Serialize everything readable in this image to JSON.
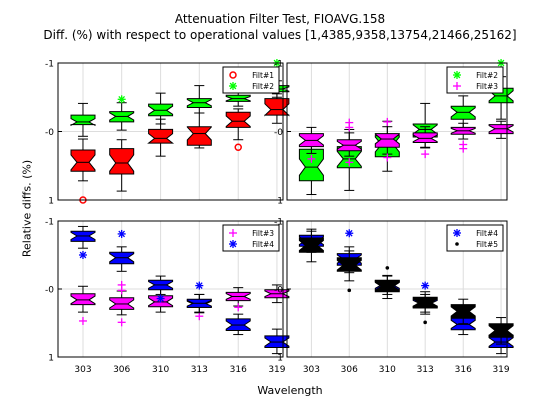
{
  "header": {
    "title_line1": "Attenuation Filter Test, FIOAVG.158",
    "title_line2": "Diff. (%) with respect to operational values [1,4385,9358,13754,21466,25162]"
  },
  "axes": {
    "ylabel": "Relative diffs. (%)",
    "xlabel": "Wavelength"
  },
  "colors": {
    "red": "#ff0000",
    "green": "#00ff00",
    "magenta": "#ff00ff",
    "blue": "#0000ff",
    "black": "#000000"
  },
  "chart_data": {
    "type": "box",
    "categories": [
      "303",
      "306",
      "310",
      "313",
      "316",
      "319"
    ],
    "grid": true,
    "panels": [
      {
        "ylim": [
          -1,
          1
        ],
        "yticks": [
          "-1",
          "-0",
          "1"
        ],
        "legend_position": "top-right",
        "series": [
          {
            "name": "Filt#1",
            "color": "red",
            "marker": "circle",
            "boxes": [
              {
                "q1": -0.58,
                "med": -0.45,
                "q3": -0.27,
                "wlo": -0.72,
                "whi": -0.11,
                "out": [
                  -1.0
                ]
              },
              {
                "q1": -0.62,
                "med": -0.46,
                "q3": -0.25,
                "wlo": -0.87,
                "whi": -0.12,
                "out": []
              },
              {
                "q1": -0.17,
                "med": -0.1,
                "q3": 0.03,
                "wlo": -0.36,
                "whi": 0.18,
                "out": []
              },
              {
                "q1": -0.2,
                "med": -0.03,
                "q3": 0.07,
                "wlo": -0.24,
                "whi": 0.27,
                "out": []
              },
              {
                "q1": 0.06,
                "med": 0.15,
                "q3": 0.28,
                "wlo": -0.12,
                "whi": 0.33,
                "out": [
                  -0.23
                ]
              },
              {
                "q1": 0.24,
                "med": 0.32,
                "q3": 0.48,
                "wlo": 0.12,
                "whi": 0.55,
                "out": []
              }
            ]
          },
          {
            "name": "Filt#2",
            "color": "green",
            "marker": "star",
            "boxes": [
              {
                "q1": 0.1,
                "med": 0.14,
                "q3": 0.24,
                "wlo": -0.07,
                "whi": 0.41,
                "out": []
              },
              {
                "q1": 0.14,
                "med": 0.22,
                "q3": 0.29,
                "wlo": 0.02,
                "whi": 0.42,
                "out": [
                  0.47
                ]
              },
              {
                "q1": 0.23,
                "med": 0.31,
                "q3": 0.4,
                "wlo": 0.11,
                "whi": 0.56,
                "out": []
              },
              {
                "q1": 0.35,
                "med": 0.42,
                "q3": 0.48,
                "wlo": 0.27,
                "whi": 0.67,
                "out": []
              },
              {
                "q1": 0.44,
                "med": 0.48,
                "q3": 0.53,
                "wlo": 0.37,
                "whi": 0.6,
                "out": []
              },
              {
                "q1": 0.58,
                "med": 0.62,
                "q3": 0.67,
                "wlo": 0.5,
                "whi": 0.74,
                "out": [
                  1.0
                ]
              }
            ]
          }
        ]
      },
      {
        "ylim": [
          -1,
          1
        ],
        "yticks": [
          "-1",
          "-0",
          "1"
        ],
        "legend_position": "top-right",
        "series": [
          {
            "name": "Filt#2",
            "color": "green",
            "marker": "star",
            "boxes": [
              {
                "q1": -0.72,
                "med": -0.52,
                "q3": -0.26,
                "wlo": -0.92,
                "whi": -0.06,
                "out": []
              },
              {
                "q1": -0.53,
                "med": -0.4,
                "q3": -0.22,
                "wlo": -0.86,
                "whi": 0.03,
                "out": []
              },
              {
                "q1": -0.37,
                "med": -0.19,
                "q3": -0.06,
                "wlo": -0.58,
                "whi": 0.15,
                "out": []
              },
              {
                "q1": -0.08,
                "med": 0.03,
                "q3": 0.11,
                "wlo": -0.23,
                "whi": 0.41,
                "out": []
              },
              {
                "q1": 0.18,
                "med": 0.28,
                "q3": 0.37,
                "wlo": 0.04,
                "whi": 0.52,
                "out": []
              },
              {
                "q1": 0.42,
                "med": 0.52,
                "q3": 0.63,
                "wlo": 0.18,
                "whi": 0.8,
                "out": [
                  1.0
                ]
              }
            ]
          },
          {
            "name": "Filt#3",
            "color": "magenta",
            "marker": "plus",
            "boxes": [
              {
                "q1": -0.22,
                "med": -0.13,
                "q3": -0.03,
                "wlo": -0.32,
                "whi": 0.06,
                "out": [
                  -0.4
                ]
              },
              {
                "q1": -0.28,
                "med": -0.2,
                "q3": -0.12,
                "wlo": -0.36,
                "whi": -0.02,
                "out": [
                  0.13,
                  0.06,
                  -0.45
                ]
              },
              {
                "q1": -0.23,
                "med": -0.11,
                "q3": -0.03,
                "wlo": -0.33,
                "whi": 0.07,
                "out": [
                  0.14,
                  -0.38
                ]
              },
              {
                "q1": -0.16,
                "med": -0.1,
                "q3": -0.02,
                "wlo": -0.24,
                "whi": 0.07,
                "out": [
                  -0.33
                ]
              },
              {
                "q1": -0.04,
                "med": 0.01,
                "q3": 0.06,
                "wlo": -0.11,
                "whi": 0.12,
                "out": [
                  -0.19,
                  -0.25
                ]
              },
              {
                "q1": -0.03,
                "med": 0.04,
                "q3": 0.1,
                "wlo": -0.1,
                "whi": 0.15,
                "out": []
              }
            ]
          }
        ]
      },
      {
        "ylim": [
          -1,
          1
        ],
        "yticks": [
          "-1",
          "-0",
          "1"
        ],
        "legend_position": "top-right",
        "series": [
          {
            "name": "Filt#3",
            "color": "magenta",
            "marker": "plus",
            "boxes": [
              {
                "q1": -0.23,
                "med": -0.16,
                "q3": -0.07,
                "wlo": -0.34,
                "whi": 0.04,
                "out": [
                  -0.47
                ]
              },
              {
                "q1": -0.3,
                "med": -0.22,
                "q3": -0.13,
                "wlo": -0.38,
                "whi": -0.03,
                "out": [
                  0.06,
                  -0.02,
                  -0.49
                ]
              },
              {
                "q1": -0.26,
                "med": -0.19,
                "q3": -0.1,
                "wlo": -0.34,
                "whi": 0.02,
                "out": [
                  -0.17
                ]
              },
              {
                "q1": -0.27,
                "med": -0.22,
                "q3": -0.16,
                "wlo": -0.34,
                "whi": -0.08,
                "out": [
                  -0.4
                ]
              },
              {
                "q1": -0.17,
                "med": -0.11,
                "q3": -0.05,
                "wlo": -0.25,
                "whi": 0.02,
                "out": [
                  -0.27
                ]
              },
              {
                "q1": -0.13,
                "med": -0.07,
                "q3": -0.01,
                "wlo": -0.2,
                "whi": 0.06,
                "out": []
              }
            ]
          },
          {
            "name": "Filt#4",
            "color": "blue",
            "marker": "star",
            "boxes": [
              {
                "q1": 0.7,
                "med": 0.78,
                "q3": 0.85,
                "wlo": 0.6,
                "whi": 0.92,
                "out": [
                  0.5
                ]
              },
              {
                "q1": 0.37,
                "med": 0.46,
                "q3": 0.54,
                "wlo": 0.26,
                "whi": 0.62,
                "out": [
                  0.81
                ]
              },
              {
                "q1": -0.01,
                "med": 0.06,
                "q3": 0.13,
                "wlo": -0.08,
                "whi": 0.19,
                "out": [
                  -0.14
                ]
              },
              {
                "q1": -0.27,
                "med": -0.21,
                "q3": -0.15,
                "wlo": -0.35,
                "whi": -0.08,
                "out": [
                  0.05
                ]
              },
              {
                "q1": -0.61,
                "med": -0.53,
                "q3": -0.44,
                "wlo": -0.67,
                "whi": -0.37,
                "out": []
              },
              {
                "q1": -0.86,
                "med": -0.78,
                "q3": -0.69,
                "wlo": -0.95,
                "whi": -0.59,
                "out": []
              }
            ]
          }
        ]
      },
      {
        "ylim": [
          -1,
          1
        ],
        "yticks": [
          "-1",
          "-0",
          "1"
        ],
        "legend_position": "top-right",
        "series": [
          {
            "name": "Filt#4",
            "color": "blue",
            "marker": "star",
            "boxes": [
              {
                "q1": 0.63,
                "med": 0.71,
                "q3": 0.79,
                "wlo": 0.54,
                "whi": 0.88,
                "out": []
              },
              {
                "q1": 0.35,
                "med": 0.44,
                "q3": 0.52,
                "wlo": 0.24,
                "whi": 0.62,
                "out": [
                  0.82
                ]
              },
              {
                "q1": -0.01,
                "med": 0.06,
                "q3": 0.13,
                "wlo": -0.08,
                "whi": 0.19,
                "out": []
              },
              {
                "q1": -0.27,
                "med": -0.21,
                "q3": -0.15,
                "wlo": -0.34,
                "whi": -0.08,
                "out": [
                  0.05
                ]
              },
              {
                "q1": -0.6,
                "med": -0.52,
                "q3": -0.43,
                "wlo": -0.67,
                "whi": -0.37,
                "out": []
              },
              {
                "q1": -0.86,
                "med": -0.78,
                "q3": -0.68,
                "wlo": -0.95,
                "whi": -0.59,
                "out": []
              }
            ]
          },
          {
            "name": "Filt#5",
            "color": "black",
            "marker": "dot",
            "boxes": [
              {
                "q1": 0.54,
                "med": 0.64,
                "q3": 0.75,
                "wlo": 0.4,
                "whi": 0.85,
                "out": []
              },
              {
                "q1": 0.26,
                "med": 0.35,
                "q3": 0.46,
                "wlo": 0.12,
                "whi": 0.56,
                "out": [
                  -0.02
                ]
              },
              {
                "q1": -0.04,
                "med": 0.04,
                "q3": 0.12,
                "wlo": -0.14,
                "whi": 0.2,
                "out": [
                  0.31
                ]
              },
              {
                "q1": -0.28,
                "med": -0.2,
                "q3": -0.12,
                "wlo": -0.37,
                "whi": -0.04,
                "out": [
                  -0.49
                ]
              },
              {
                "q1": -0.42,
                "med": -0.33,
                "q3": -0.23,
                "wlo": -0.51,
                "whi": -0.15,
                "out": []
              },
              {
                "q1": -0.71,
                "med": -0.61,
                "q3": -0.51,
                "wlo": -0.81,
                "whi": -0.42,
                "out": []
              }
            ]
          }
        ]
      }
    ]
  }
}
